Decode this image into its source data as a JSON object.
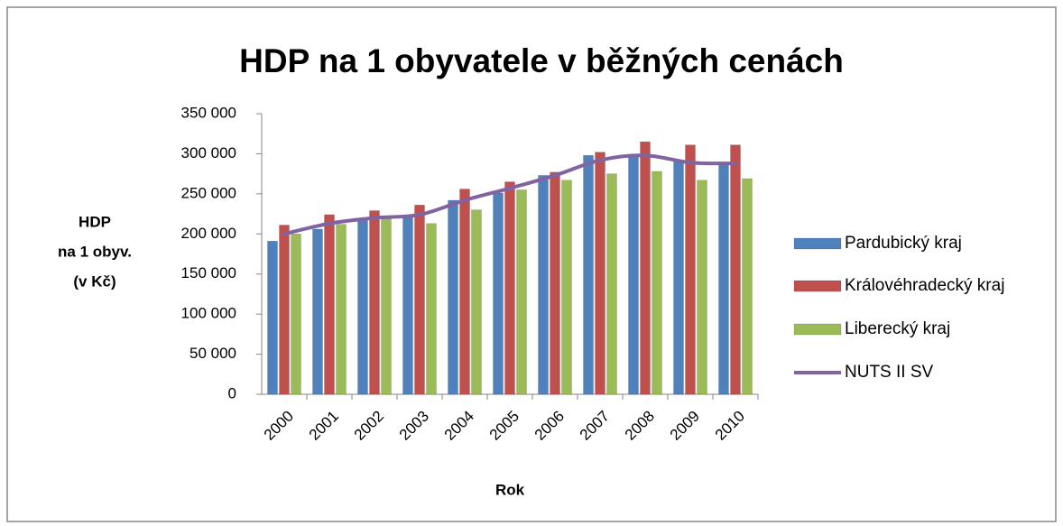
{
  "chart_data": {
    "type": "bar",
    "title": "HDP na 1 obyvatele v běžných cenách",
    "y_label": [
      "HDP",
      "na 1 obyv.",
      "(v Kč)"
    ],
    "x_label": "Rok",
    "categories": [
      "2000",
      "2001",
      "2002",
      "2003",
      "2004",
      "2005",
      "2006",
      "2007",
      "2008",
      "2009",
      "2010"
    ],
    "series": [
      {
        "name": "Pardubický kraj",
        "type": "bar",
        "color": "#4f81bd",
        "values": [
          191000,
          206000,
          219000,
          222000,
          242000,
          251000,
          273000,
          298000,
          298000,
          290000,
          287000
        ]
      },
      {
        "name": "Královéhradecký kraj",
        "type": "bar",
        "color": "#c0504d",
        "values": [
          211000,
          224000,
          229000,
          236000,
          256000,
          265000,
          277000,
          302000,
          315000,
          311000,
          311000
        ]
      },
      {
        "name": "Liberecký kraj",
        "type": "bar",
        "color": "#9bbb59",
        "values": [
          200000,
          212000,
          219000,
          213000,
          230000,
          255000,
          267000,
          275000,
          278000,
          267000,
          269000
        ]
      },
      {
        "name": "NUTS II SV",
        "type": "line",
        "color": "#8064a2",
        "values": [
          200000,
          213000,
          220000,
          224000,
          242000,
          257000,
          273000,
          292000,
          298000,
          289000,
          288000
        ]
      }
    ],
    "ylim": [
      0,
      350000
    ],
    "yticks": [
      0,
      {
        "value": 50000,
        "label": "50 000"
      },
      {
        "value": 100000,
        "label": "100 000"
      },
      {
        "value": 150000,
        "label": "150 000"
      },
      {
        "value": 200000,
        "label": "200 000"
      },
      {
        "value": 250000,
        "label": "250 000"
      },
      {
        "value": 300000,
        "label": "300 000"
      },
      {
        "value": 350000,
        "label": "350 000"
      }
    ],
    "legend": "right"
  }
}
